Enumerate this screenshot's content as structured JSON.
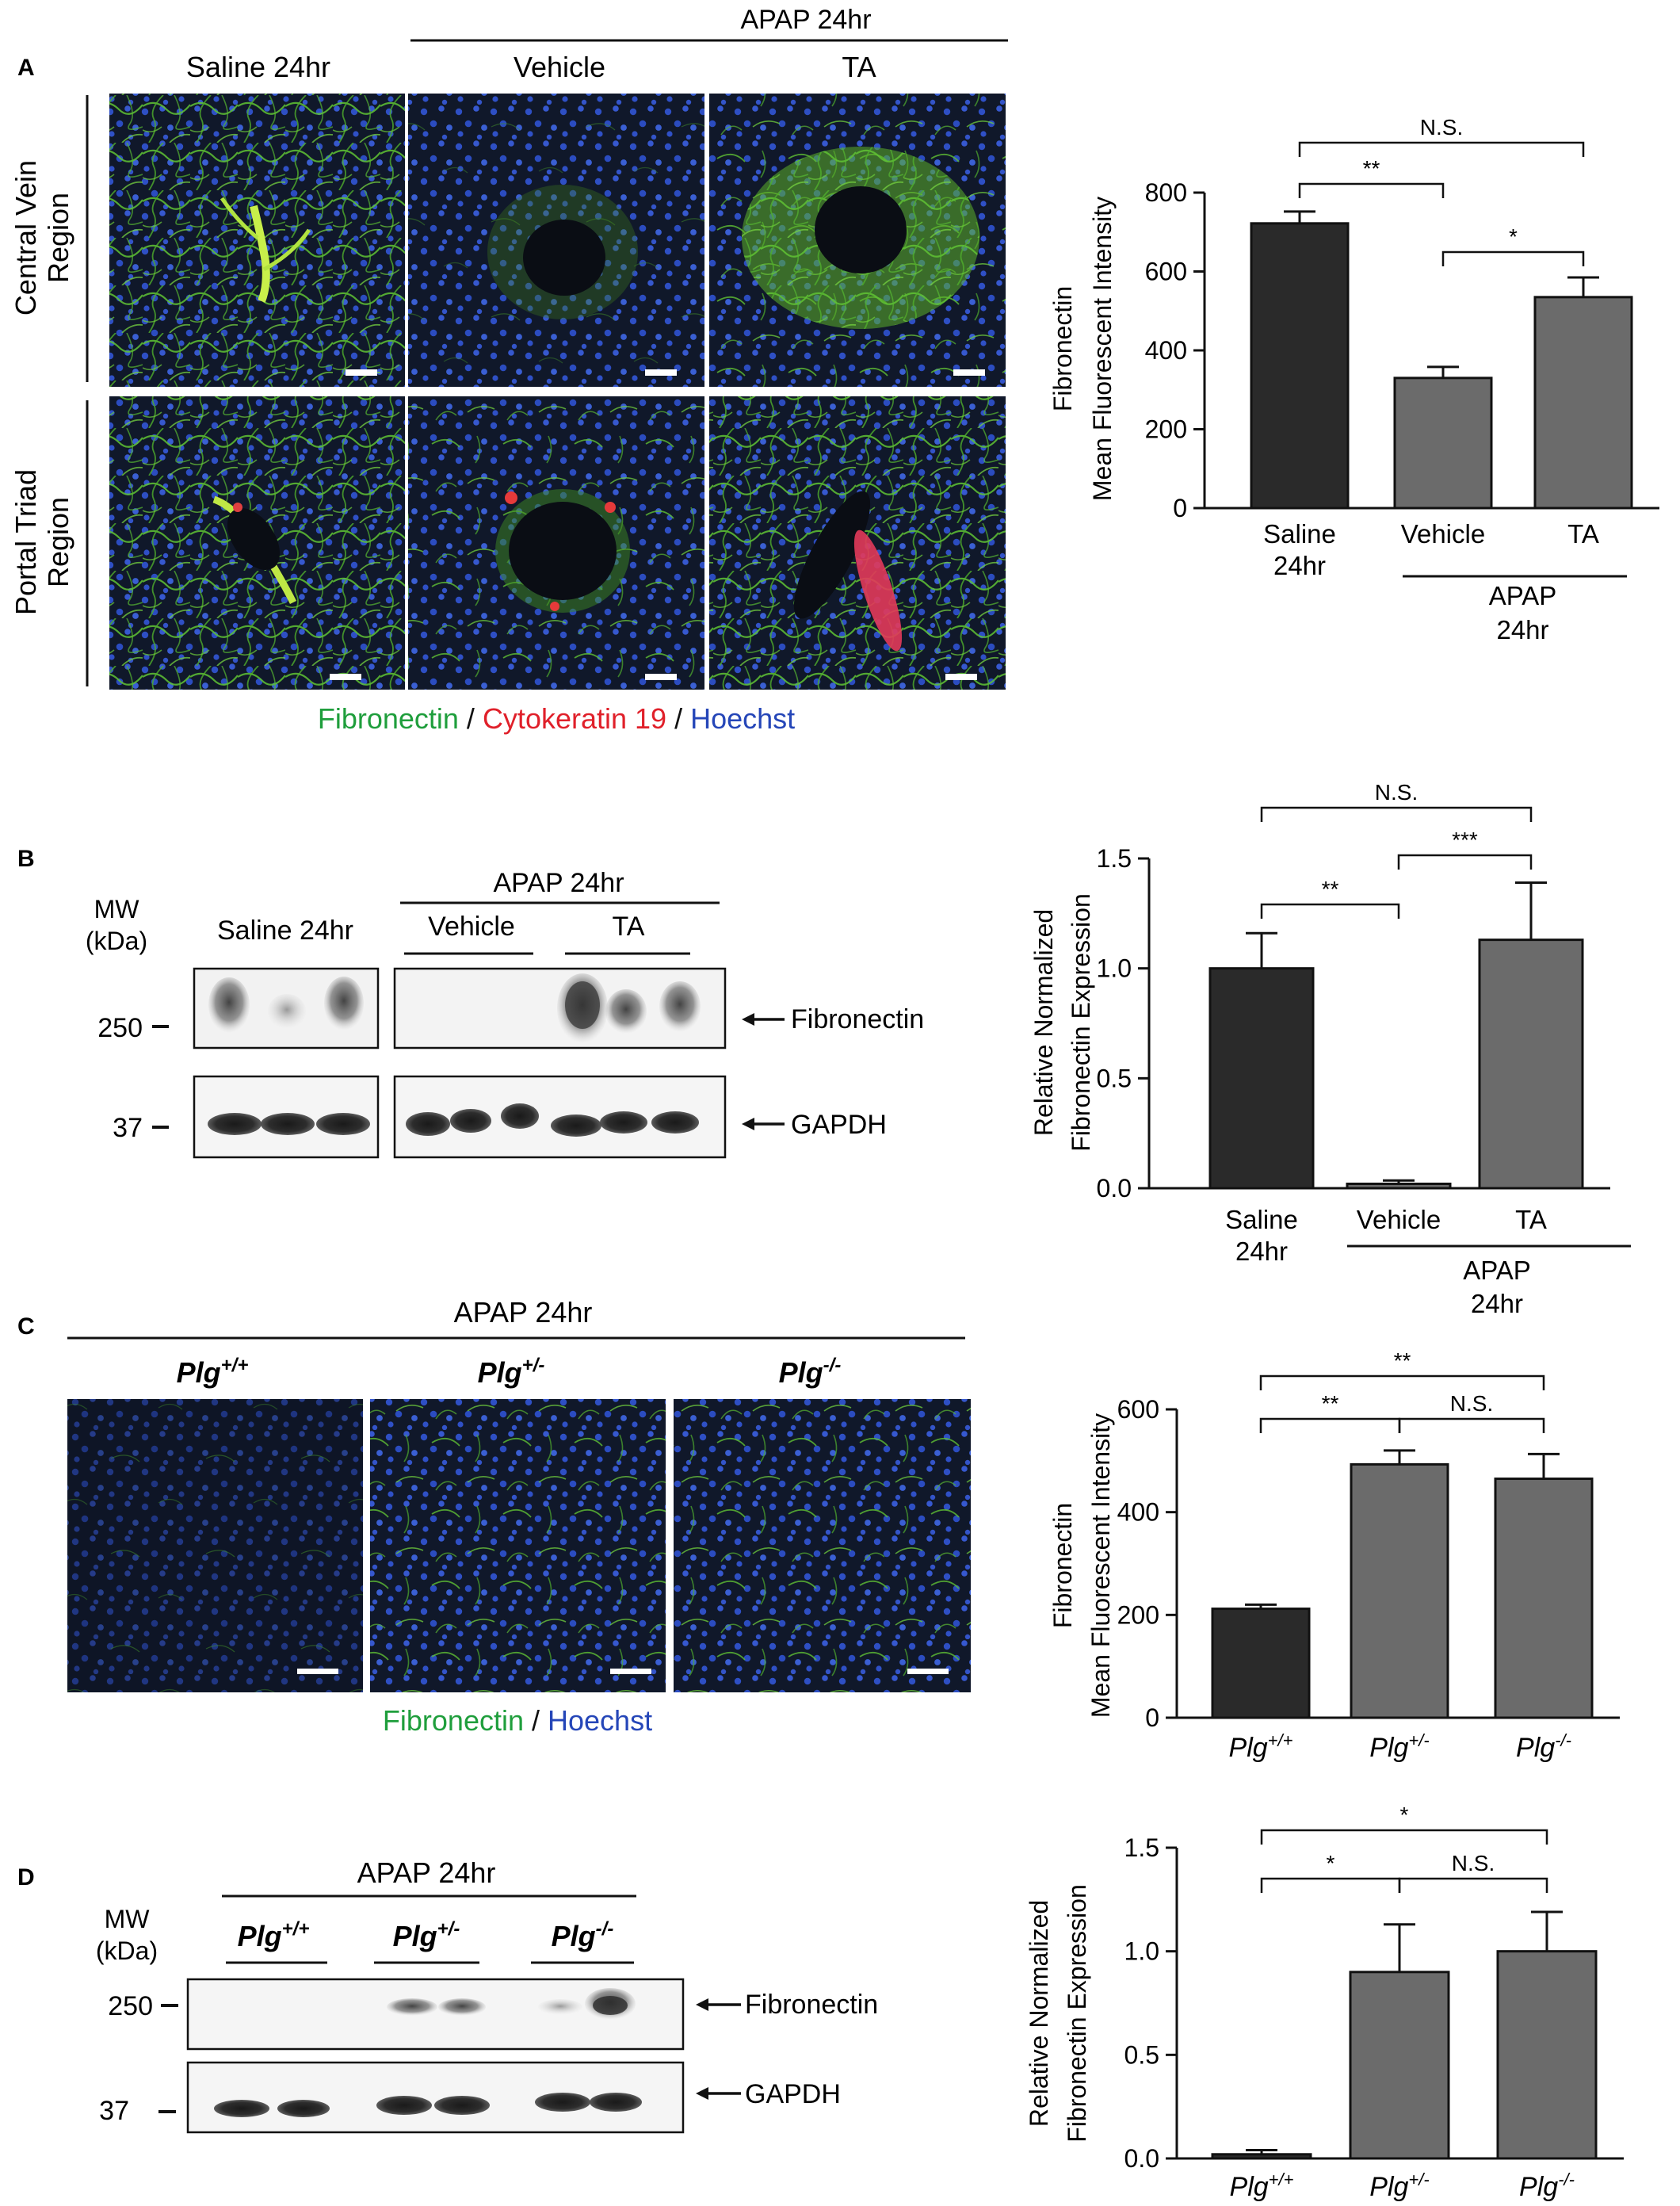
{
  "panelA": {
    "letter": "A",
    "group_header": "APAP 24hr",
    "col_labels": [
      "Saline 24hr",
      "Vehicle",
      "TA"
    ],
    "row_labels": [
      [
        "Central Vein",
        "Region"
      ],
      [
        "Portal Triad",
        "Region"
      ]
    ],
    "stain_legend": [
      {
        "text": "Fibronectin",
        "color": "#1f9e3c"
      },
      {
        "text": " / ",
        "color": "#111111"
      },
      {
        "text": "Cytokeratin 19",
        "color": "#e0202a"
      },
      {
        "text": " / ",
        "color": "#111111"
      },
      {
        "text": "Hoechst",
        "color": "#2546b8"
      }
    ]
  },
  "panelB": {
    "letter": "B",
    "mw_label": [
      "MW",
      "(kDa)"
    ],
    "group_header": "APAP 24hr",
    "lane_groups": [
      "Saline 24hr",
      "Vehicle",
      "TA"
    ],
    "markers": [
      "250",
      "37"
    ],
    "bands": [
      "Fibronectin",
      "GAPDH"
    ]
  },
  "panelC": {
    "letter": "C",
    "group_header": "APAP 24hr",
    "genotypes": [
      {
        "base": "Plg",
        "sup": "+/+"
      },
      {
        "base": "Plg",
        "sup": "+/-"
      },
      {
        "base": "Plg",
        "sup": "-/-"
      }
    ],
    "stain_legend": [
      {
        "text": "Fibronectin",
        "color": "#1f9e3c"
      },
      {
        "text": " / ",
        "color": "#111111"
      },
      {
        "text": "Hoechst",
        "color": "#2546b8"
      }
    ]
  },
  "panelD": {
    "letter": "D",
    "mw_label": [
      "MW",
      "(kDa)"
    ],
    "group_header": "APAP 24hr",
    "genotypes": [
      {
        "base": "Plg",
        "sup": "+/+"
      },
      {
        "base": "Plg",
        "sup": "+/-"
      },
      {
        "base": "Plg",
        "sup": "-/-"
      }
    ],
    "markers": [
      "250",
      "37"
    ],
    "bands": [
      "Fibronectin",
      "GAPDH"
    ]
  },
  "chart_data": [
    {
      "panel": "A",
      "type": "bar",
      "ylabel": [
        "Fibronectin",
        "Mean Fluorescent Intensity"
      ],
      "ylim": [
        0,
        800
      ],
      "yticks": [
        "0",
        "200",
        "400",
        "600",
        "800"
      ],
      "categories": [
        [
          "Saline",
          "24hr"
        ],
        [
          "Vehicle"
        ],
        [
          "TA"
        ]
      ],
      "group_label": [
        "APAP",
        "24hr"
      ],
      "values": [
        722,
        330,
        535
      ],
      "errors": [
        30,
        28,
        50
      ],
      "colors": [
        "#2a2a2a",
        "#6b6b6b",
        "#6b6b6b"
      ],
      "significance": [
        {
          "from": 0,
          "to": 1,
          "label": "**"
        },
        {
          "from": 1,
          "to": 2,
          "label": "*"
        },
        {
          "from": 0,
          "to": 2,
          "label": "N.S."
        }
      ]
    },
    {
      "panel": "B",
      "type": "bar",
      "ylabel": [
        "Relative Normalized",
        "Fibronectin Expression"
      ],
      "ylim": [
        0,
        1.5
      ],
      "yticks": [
        "0.0",
        "0.5",
        "1.0",
        "1.5"
      ],
      "categories": [
        [
          "Saline",
          "24hr"
        ],
        [
          "Vehicle"
        ],
        [
          "TA"
        ]
      ],
      "group_label": [
        "APAP",
        "24hr"
      ],
      "values": [
        1.0,
        0.02,
        1.13
      ],
      "errors": [
        0.16,
        0.015,
        0.26
      ],
      "colors": [
        "#2a2a2a",
        "#6b6b6b",
        "#6b6b6b"
      ],
      "significance": [
        {
          "from": 0,
          "to": 1,
          "label": "**"
        },
        {
          "from": 1,
          "to": 2,
          "label": "***"
        },
        {
          "from": 0,
          "to": 2,
          "label": "N.S."
        }
      ]
    },
    {
      "panel": "C",
      "type": "bar",
      "ylabel": [
        "Fibronectin",
        "Mean Fluorescent Intensity"
      ],
      "ylim": [
        0,
        600
      ],
      "yticks": [
        "0",
        "200",
        "400",
        "600"
      ],
      "categories": [
        "Plg+/+",
        "Plg+/-",
        "Plg-/-"
      ],
      "values": [
        212,
        493,
        465
      ],
      "errors": [
        8,
        27,
        48
      ],
      "colors": [
        "#2a2a2a",
        "#6b6b6b",
        "#6b6b6b"
      ],
      "significance": [
        {
          "from": 0,
          "to": 1,
          "label": "**"
        },
        {
          "from": 1,
          "to": 2,
          "label": "N.S."
        },
        {
          "from": 0,
          "to": 2,
          "label": "**"
        }
      ]
    },
    {
      "panel": "D",
      "type": "bar",
      "ylabel": [
        "Relative Normalized",
        "Fibronectin Expression"
      ],
      "ylim": [
        0,
        1.5
      ],
      "yticks": [
        "0.0",
        "0.5",
        "1.0",
        "1.5"
      ],
      "categories": [
        "Plg+/+",
        "Plg+/-",
        "Plg-/-"
      ],
      "values": [
        0.02,
        0.9,
        1.0
      ],
      "errors": [
        0.02,
        0.23,
        0.19
      ],
      "colors": [
        "#2a2a2a",
        "#6b6b6b",
        "#6b6b6b"
      ],
      "significance": [
        {
          "from": 0,
          "to": 1,
          "label": "*"
        },
        {
          "from": 1,
          "to": 2,
          "label": "N.S."
        },
        {
          "from": 0,
          "to": 2,
          "label": "*"
        }
      ]
    }
  ]
}
